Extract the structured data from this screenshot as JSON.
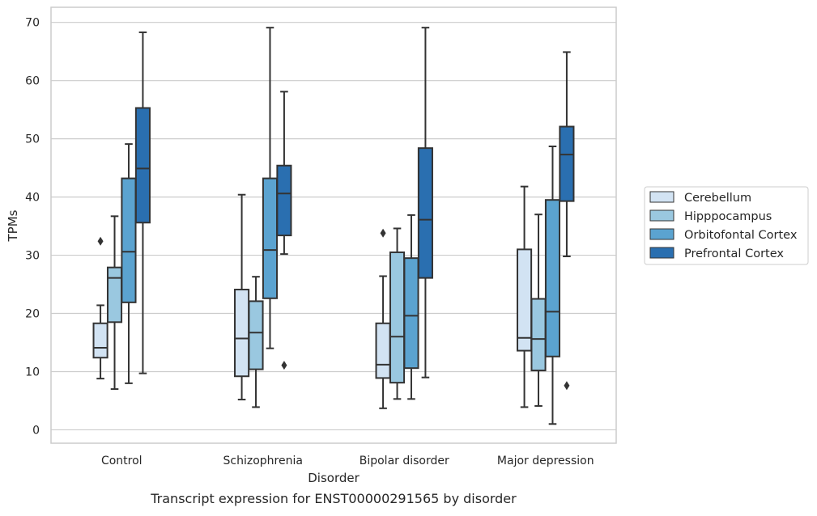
{
  "chart_data": {
    "type": "box",
    "title": "",
    "xlabel": "Disorder",
    "ylabel": "TPMs",
    "caption": "Transcript expression for ENST00000291565 by disorder",
    "ylim": [
      -2.3,
      72.6
    ],
    "yticks": [
      "0",
      "10",
      "20",
      "30",
      "40",
      "50",
      "60",
      "70"
    ],
    "ytick_values": [
      0,
      10,
      20,
      30,
      40,
      50,
      60,
      70
    ],
    "grid": true,
    "legend_position": "right",
    "categories": [
      "Control",
      "Schizophrenia",
      "Bipolar disorder",
      "Major depression"
    ],
    "series": [
      {
        "name": "Cerebellum",
        "color": "#d2e3f3",
        "boxes": [
          {
            "whislo": 8.8,
            "q1": 12.4,
            "med": 14.1,
            "q3": 18.3,
            "whishi": 21.4,
            "fliers": [
              32.4
            ]
          },
          {
            "whislo": 5.2,
            "q1": 9.2,
            "med": 15.7,
            "q3": 24.1,
            "whishi": 40.4,
            "fliers": []
          },
          {
            "whislo": 3.7,
            "q1": 8.9,
            "med": 11.2,
            "q3": 18.3,
            "whishi": 26.4,
            "fliers": [
              33.8
            ]
          },
          {
            "whislo": 3.9,
            "q1": 13.6,
            "med": 15.8,
            "q3": 31.0,
            "whishi": 41.8,
            "fliers": []
          }
        ]
      },
      {
        "name": "Hipppocampus",
        "color": "#9ac8e0",
        "boxes": [
          {
            "whislo": 7.0,
            "q1": 18.5,
            "med": 26.1,
            "q3": 27.9,
            "whishi": 36.7,
            "fliers": []
          },
          {
            "whislo": 3.9,
            "q1": 10.4,
            "med": 16.7,
            "q3": 22.1,
            "whishi": 26.3,
            "fliers": []
          },
          {
            "whislo": 5.3,
            "q1": 8.1,
            "med": 16.0,
            "q3": 30.5,
            "whishi": 34.6,
            "fliers": []
          },
          {
            "whislo": 4.1,
            "q1": 10.2,
            "med": 15.6,
            "q3": 22.5,
            "whishi": 37.0,
            "fliers": []
          }
        ]
      },
      {
        "name": "Orbitofontal Cortex",
        "color": "#5ba3d0",
        "boxes": [
          {
            "whislo": 8.0,
            "q1": 21.9,
            "med": 30.6,
            "q3": 43.2,
            "whishi": 49.1,
            "fliers": []
          },
          {
            "whislo": 14.0,
            "q1": 22.6,
            "med": 30.9,
            "q3": 43.2,
            "whishi": 69.1,
            "fliers": []
          },
          {
            "whislo": 5.3,
            "q1": 10.6,
            "med": 19.6,
            "q3": 29.5,
            "whishi": 36.9,
            "fliers": []
          },
          {
            "whislo": 1.0,
            "q1": 12.6,
            "med": 20.3,
            "q3": 39.5,
            "whishi": 48.7,
            "fliers": []
          }
        ]
      },
      {
        "name": "Prefrontal Cortex",
        "color": "#2a6fb0",
        "boxes": [
          {
            "whislo": 9.7,
            "q1": 35.6,
            "med": 44.9,
            "q3": 55.3,
            "whishi": 68.3,
            "fliers": []
          },
          {
            "whislo": 30.2,
            "q1": 33.4,
            "med": 40.6,
            "q3": 45.4,
            "whishi": 58.1,
            "fliers": [
              11.1
            ]
          },
          {
            "whislo": 9.0,
            "q1": 26.1,
            "med": 36.1,
            "q3": 48.4,
            "whishi": 69.1,
            "fliers": []
          },
          {
            "whislo": 29.8,
            "q1": 39.3,
            "med": 47.3,
            "q3": 52.1,
            "whishi": 64.9,
            "fliers": [
              7.6
            ]
          }
        ]
      }
    ]
  }
}
